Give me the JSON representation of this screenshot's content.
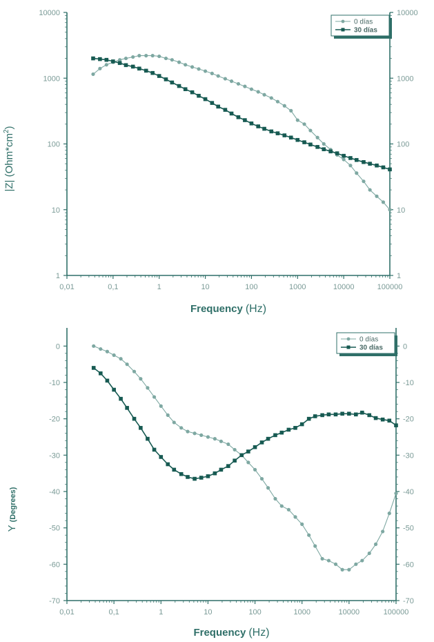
{
  "colors": {
    "axis": "#2f6f68",
    "series_0": "#7ea8a2",
    "series_30": "#175a52",
    "tick": "#7a9a96"
  },
  "chart_data": [
    {
      "type": "line",
      "xscale": "log",
      "yscale": "log",
      "xlabel_main": "Frequency",
      "xlabel_unit": "(Hz)",
      "ylabel": "|Z| (Ohm*cm",
      "ylabel_sup": "2",
      "ylabel_end": ")",
      "xlim": [
        0.01,
        100000
      ],
      "ylim": [
        1,
        10000
      ],
      "xticks": [
        "0,01",
        "0,1",
        "1",
        "10",
        "100",
        "1000",
        "10000",
        "100000"
      ],
      "yticks": [
        "1",
        "10",
        "100",
        "1000",
        "10000"
      ],
      "legend_position": "top-right",
      "series": [
        {
          "name": "0 días",
          "marker": "circle",
          "points": [
            [
              0.037,
              1150
            ],
            [
              0.052,
              1400
            ],
            [
              0.072,
              1600
            ],
            [
              0.1,
              1750
            ],
            [
              0.14,
              1900
            ],
            [
              0.19,
              2000
            ],
            [
              0.27,
              2100
            ],
            [
              0.37,
              2200
            ],
            [
              0.52,
              2200
            ],
            [
              0.72,
              2200
            ],
            [
              1.0,
              2150
            ],
            [
              1.4,
              2000
            ],
            [
              1.9,
              1900
            ],
            [
              2.7,
              1750
            ],
            [
              3.7,
              1600
            ],
            [
              5.2,
              1480
            ],
            [
              7.2,
              1380
            ],
            [
              10,
              1280
            ],
            [
              14,
              1180
            ],
            [
              19,
              1080
            ],
            [
              27,
              980
            ],
            [
              37,
              900
            ],
            [
              52,
              820
            ],
            [
              72,
              750
            ],
            [
              100,
              680
            ],
            [
              140,
              620
            ],
            [
              190,
              560
            ],
            [
              270,
              500
            ],
            [
              370,
              440
            ],
            [
              520,
              380
            ],
            [
              720,
              320
            ],
            [
              1000,
              230
            ],
            [
              1400,
              200
            ],
            [
              1900,
              160
            ],
            [
              2700,
              125
            ],
            [
              3700,
              100
            ],
            [
              5200,
              82
            ],
            [
              7200,
              68
            ],
            [
              10000,
              58
            ],
            [
              14000,
              47
            ],
            [
              19000,
              36
            ],
            [
              27000,
              27
            ],
            [
              37000,
              20
            ],
            [
              52000,
              16
            ],
            [
              72000,
              13
            ],
            [
              100000,
              10
            ]
          ]
        },
        {
          "name": "30 días",
          "marker": "square",
          "points": [
            [
              0.037,
              2000
            ],
            [
              0.052,
              1950
            ],
            [
              0.072,
              1900
            ],
            [
              0.1,
              1800
            ],
            [
              0.14,
              1700
            ],
            [
              0.19,
              1580
            ],
            [
              0.27,
              1500
            ],
            [
              0.37,
              1400
            ],
            [
              0.52,
              1300
            ],
            [
              0.72,
              1200
            ],
            [
              1.0,
              1080
            ],
            [
              1.4,
              960
            ],
            [
              1.9,
              860
            ],
            [
              2.7,
              760
            ],
            [
              3.7,
              680
            ],
            [
              5.2,
              610
            ],
            [
              7.2,
              540
            ],
            [
              10,
              480
            ],
            [
              14,
              420
            ],
            [
              19,
              370
            ],
            [
              27,
              330
            ],
            [
              37,
              290
            ],
            [
              52,
              255
            ],
            [
              72,
              230
            ],
            [
              100,
              205
            ],
            [
              140,
              185
            ],
            [
              190,
              170
            ],
            [
              270,
              155
            ],
            [
              370,
              145
            ],
            [
              520,
              135
            ],
            [
              720,
              125
            ],
            [
              1000,
              115
            ],
            [
              1400,
              106
            ],
            [
              1900,
              98
            ],
            [
              2700,
              90
            ],
            [
              3700,
              83
            ],
            [
              5200,
              77
            ],
            [
              7200,
              72
            ],
            [
              10000,
              66
            ],
            [
              14000,
              61
            ],
            [
              19000,
              57
            ],
            [
              27000,
              53
            ],
            [
              37000,
              50
            ],
            [
              52000,
              47
            ],
            [
              72000,
              44
            ],
            [
              100000,
              41
            ]
          ]
        }
      ]
    },
    {
      "type": "line",
      "xscale": "log",
      "yscale": "linear",
      "xlabel_main": "Frequency",
      "xlabel_unit": "(Hz)",
      "ylabel": "Y",
      "ylabel_unit": "(Degrees)",
      "xlim": [
        0.01,
        100000
      ],
      "ylim": [
        -70,
        5
      ],
      "xticks": [
        "0,01",
        "0,1",
        "1",
        "10",
        "100",
        "1000",
        "10000",
        "100000"
      ],
      "yticks": [
        "0",
        "-10",
        "-20",
        "-30",
        "-40",
        "-50",
        "-60",
        "-70"
      ],
      "legend_position": "top-right",
      "series": [
        {
          "name": "0 días",
          "marker": "circle",
          "points": [
            [
              0.037,
              0
            ],
            [
              0.052,
              -0.8
            ],
            [
              0.072,
              -1.5
            ],
            [
              0.1,
              -2.5
            ],
            [
              0.14,
              -3.5
            ],
            [
              0.19,
              -5
            ],
            [
              0.27,
              -7
            ],
            [
              0.37,
              -9
            ],
            [
              0.52,
              -11.5
            ],
            [
              0.72,
              -14
            ],
            [
              1.0,
              -16.5
            ],
            [
              1.4,
              -19
            ],
            [
              1.9,
              -21
            ],
            [
              2.7,
              -22.5
            ],
            [
              3.7,
              -23.5
            ],
            [
              5.2,
              -24
            ],
            [
              7.2,
              -24.5
            ],
            [
              10,
              -25
            ],
            [
              14,
              -25.5
            ],
            [
              19,
              -26.2
            ],
            [
              27,
              -27
            ],
            [
              37,
              -28.5
            ],
            [
              52,
              -30
            ],
            [
              72,
              -32
            ],
            [
              100,
              -34
            ],
            [
              140,
              -36.5
            ],
            [
              190,
              -39
            ],
            [
              270,
              -42
            ],
            [
              370,
              -44
            ],
            [
              520,
              -45
            ],
            [
              720,
              -47
            ],
            [
              1000,
              -49
            ],
            [
              1400,
              -52
            ],
            [
              1900,
              -55
            ],
            [
              2700,
              -58.5
            ],
            [
              3700,
              -59
            ],
            [
              5200,
              -60
            ],
            [
              7200,
              -61.5
            ],
            [
              10000,
              -61.5
            ],
            [
              14000,
              -60
            ],
            [
              19000,
              -59
            ],
            [
              27000,
              -57
            ],
            [
              37000,
              -54.5
            ],
            [
              52000,
              -51
            ],
            [
              72000,
              -46
            ],
            [
              100000,
              -40.5
            ]
          ]
        },
        {
          "name": "30 días",
          "marker": "square",
          "points": [
            [
              0.037,
              -6
            ],
            [
              0.052,
              -7.5
            ],
            [
              0.072,
              -9.5
            ],
            [
              0.1,
              -12
            ],
            [
              0.14,
              -14.5
            ],
            [
              0.19,
              -17
            ],
            [
              0.27,
              -20
            ],
            [
              0.37,
              -22.5
            ],
            [
              0.52,
              -25.5
            ],
            [
              0.72,
              -28.5
            ],
            [
              1.0,
              -30.5
            ],
            [
              1.4,
              -32.5
            ],
            [
              1.9,
              -34
            ],
            [
              2.7,
              -35.2
            ],
            [
              3.7,
              -36
            ],
            [
              5.2,
              -36.5
            ],
            [
              7.2,
              -36.2
            ],
            [
              10,
              -35.8
            ],
            [
              14,
              -35
            ],
            [
              19,
              -34
            ],
            [
              27,
              -33
            ],
            [
              37,
              -31.5
            ],
            [
              52,
              -30
            ],
            [
              72,
              -29
            ],
            [
              100,
              -27.8
            ],
            [
              140,
              -26.5
            ],
            [
              190,
              -25.5
            ],
            [
              270,
              -24.5
            ],
            [
              370,
              -23.8
            ],
            [
              520,
              -23
            ],
            [
              720,
              -22.5
            ],
            [
              1000,
              -21.5
            ],
            [
              1400,
              -20
            ],
            [
              1900,
              -19.3
            ],
            [
              2700,
              -19
            ],
            [
              3700,
              -18.8
            ],
            [
              5200,
              -18.8
            ],
            [
              7200,
              -18.6
            ],
            [
              10000,
              -18.6
            ],
            [
              14000,
              -18.8
            ],
            [
              19000,
              -18.3
            ],
            [
              27000,
              -19
            ],
            [
              37000,
              -19.8
            ],
            [
              52000,
              -20.2
            ],
            [
              72000,
              -20.5
            ],
            [
              100000,
              -21.8
            ]
          ]
        }
      ]
    }
  ]
}
